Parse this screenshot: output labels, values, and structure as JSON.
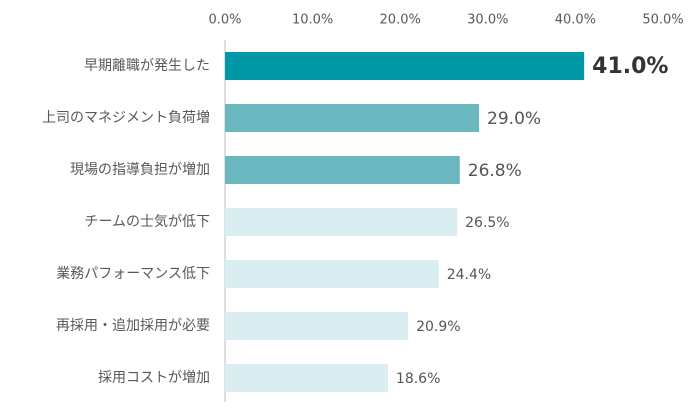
{
  "chart_data": {
    "type": "hbar",
    "categories": [
      "早期離職が発生した",
      "上司のマネジメント負荷増",
      "現場の指導負担が増加",
      "チームの士気が低下",
      "業務パフォーマンス低下",
      "再採用・追加採用が必要",
      "採用コストが増加"
    ],
    "values": [
      41.0,
      29.0,
      26.8,
      26.5,
      24.4,
      20.9,
      18.6
    ],
    "value_labels": [
      "41.0%",
      "29.0%",
      "26.8%",
      "26.5%",
      "24.4%",
      "20.9%",
      "18.6%"
    ],
    "colors": [
      "#0097a7",
      "#6bb7c0",
      "#6bb7c0",
      "#daedf0",
      "#daedf0",
      "#daedf0",
      "#daedf0"
    ],
    "xlim": [
      0,
      50
    ],
    "xticks": [
      {
        "value": 0,
        "label": "0.0%"
      },
      {
        "value": 10,
        "label": "10.0%"
      },
      {
        "value": 20,
        "label": "20.0%"
      },
      {
        "value": 30,
        "label": "30.0%"
      },
      {
        "value": 40,
        "label": "40.0%"
      },
      {
        "value": 50,
        "label": "50.0%"
      }
    ],
    "grid": false
  }
}
